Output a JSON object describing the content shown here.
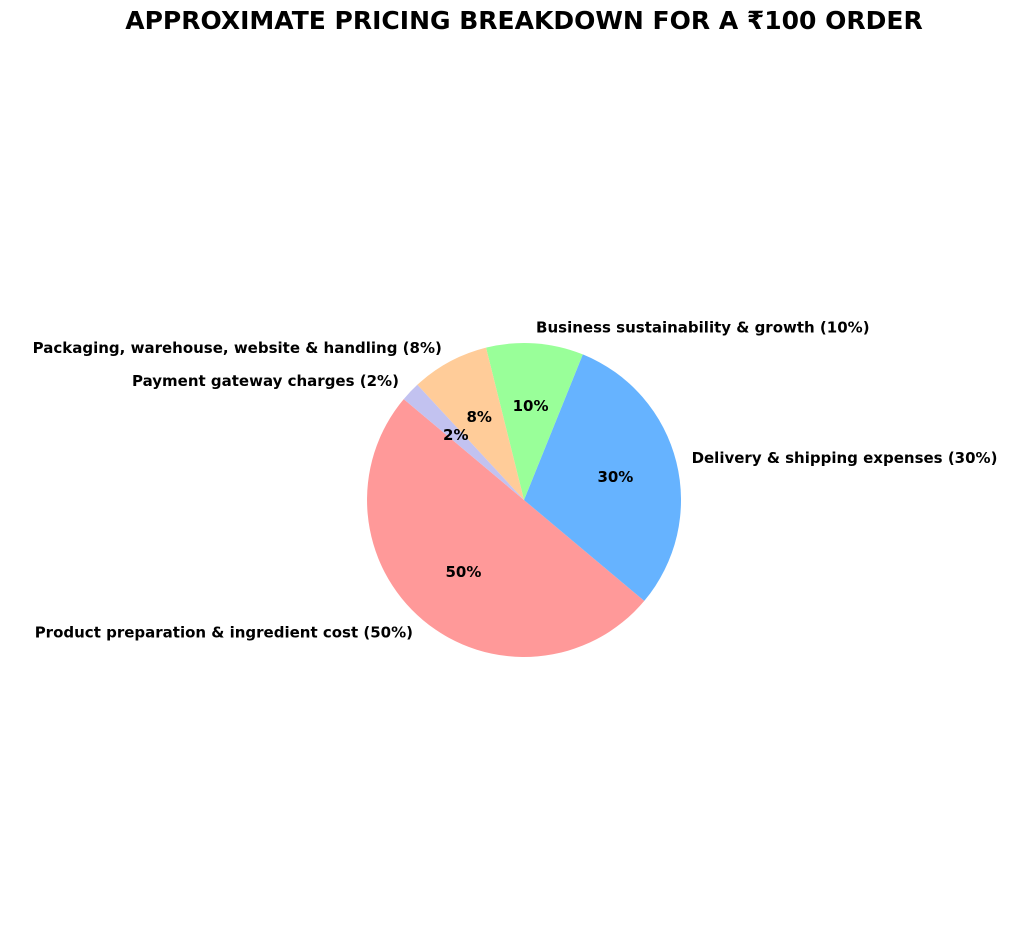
{
  "chart_data": {
    "type": "pie",
    "title": "APPROXIMATE PRICING BREAKDOWN FOR A ₹100 ORDER",
    "unit": "%",
    "start_angle_deg": 140,
    "direction": "counterclockwise",
    "slices": [
      {
        "label": "Product preparation & ingredient cost (50%)",
        "value": 50,
        "pct_label": "50%",
        "color": "#ff9999"
      },
      {
        "label": "Delivery & shipping expenses (30%)",
        "value": 30,
        "pct_label": "30%",
        "color": "#66b3ff"
      },
      {
        "label": "Business sustainability & growth (10%)",
        "value": 10,
        "pct_label": "10%",
        "color": "#99ff99"
      },
      {
        "label": "Packaging, warehouse, website & handling (8%)",
        "value": 8,
        "pct_label": "8%",
        "color": "#ffcc99"
      },
      {
        "label": "Payment gateway charges (2%)",
        "value": 2,
        "pct_label": "2%",
        "color": "#c2c2f0"
      }
    ]
  }
}
